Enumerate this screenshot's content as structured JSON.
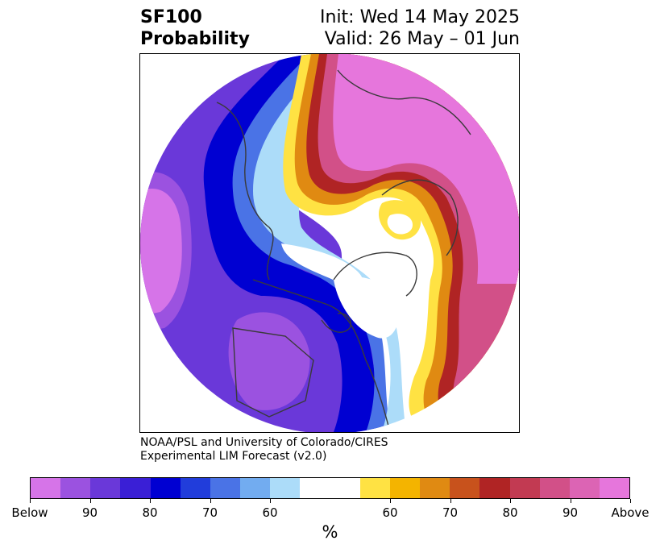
{
  "title": {
    "variable": "SF100",
    "product": "Probability",
    "init": "Init: Wed 14 May 2025",
    "valid": "Valid: 26 May – 01 Jun"
  },
  "credit": {
    "line1": "NOAA/PSL and University of Colorado/CIRES",
    "line2": "Experimental LIM Forecast (v2.0)"
  },
  "colorbar": {
    "colors": [
      "#d674e8",
      "#9b52e0",
      "#6a38d9",
      "#3a1fd6",
      "#0000d2",
      "#213ddb",
      "#4a73e6",
      "#72acf0",
      "#acdcf9",
      "#ffffff",
      "#ffffff",
      "#ffe243",
      "#f4b400",
      "#e08a12",
      "#c8521c",
      "#b02424",
      "#c23a52",
      "#d25088",
      "#dc64b4",
      "#e676dc"
    ],
    "tick_labels": [
      "Below",
      "90",
      "80",
      "70",
      "60",
      "60",
      "70",
      "80",
      "90",
      "Above"
    ],
    "unit_label": "%"
  }
}
